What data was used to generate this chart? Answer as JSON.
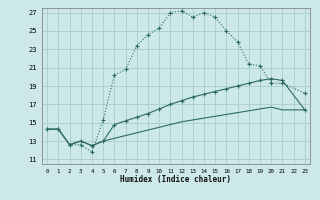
{
  "title": "",
  "xlabel": "Humidex (Indice chaleur)",
  "bg_color": "#cce8e8",
  "grid_color": "#aacccc",
  "line_color": "#2d6b5e",
  "xlim": [
    -0.5,
    23.5
  ],
  "ylim": [
    10.5,
    27.5
  ],
  "yticks": [
    11,
    13,
    15,
    17,
    19,
    21,
    23,
    25,
    27
  ],
  "xticks": [
    0,
    1,
    2,
    3,
    4,
    5,
    6,
    7,
    8,
    9,
    10,
    11,
    12,
    13,
    14,
    15,
    16,
    17,
    18,
    19,
    20,
    21,
    22,
    23
  ],
  "line1_x": [
    0,
    1,
    2,
    3,
    4,
    5,
    6,
    7,
    8,
    9,
    10,
    11,
    12,
    13,
    14,
    15,
    16,
    17,
    18,
    19,
    20,
    21,
    23
  ],
  "line1_y": [
    14.3,
    14.3,
    12.6,
    12.6,
    11.8,
    15.3,
    20.2,
    20.8,
    23.4,
    24.6,
    25.3,
    27.0,
    27.2,
    26.5,
    27.0,
    26.5,
    25.0,
    23.8,
    21.4,
    21.2,
    19.3,
    19.3,
    18.2
  ],
  "line2_x": [
    0,
    1,
    2,
    3,
    4,
    5,
    6,
    7,
    8,
    9,
    10,
    11,
    12,
    13,
    14,
    15,
    16,
    17,
    18,
    19,
    20,
    21,
    23
  ],
  "line2_y": [
    14.3,
    14.3,
    12.6,
    13.0,
    12.5,
    13.0,
    14.8,
    15.2,
    15.6,
    16.0,
    16.5,
    17.0,
    17.4,
    17.8,
    18.1,
    18.4,
    18.7,
    19.0,
    19.3,
    19.6,
    19.8,
    19.6,
    16.4
  ],
  "line3_x": [
    0,
    1,
    2,
    3,
    4,
    5,
    6,
    7,
    8,
    9,
    10,
    11,
    12,
    13,
    14,
    15,
    16,
    17,
    18,
    19,
    20,
    21,
    23
  ],
  "line3_y": [
    14.3,
    14.3,
    12.6,
    13.0,
    12.5,
    13.0,
    13.3,
    13.6,
    13.9,
    14.2,
    14.5,
    14.8,
    15.1,
    15.3,
    15.5,
    15.7,
    15.9,
    16.1,
    16.3,
    16.5,
    16.7,
    16.4,
    16.4
  ]
}
